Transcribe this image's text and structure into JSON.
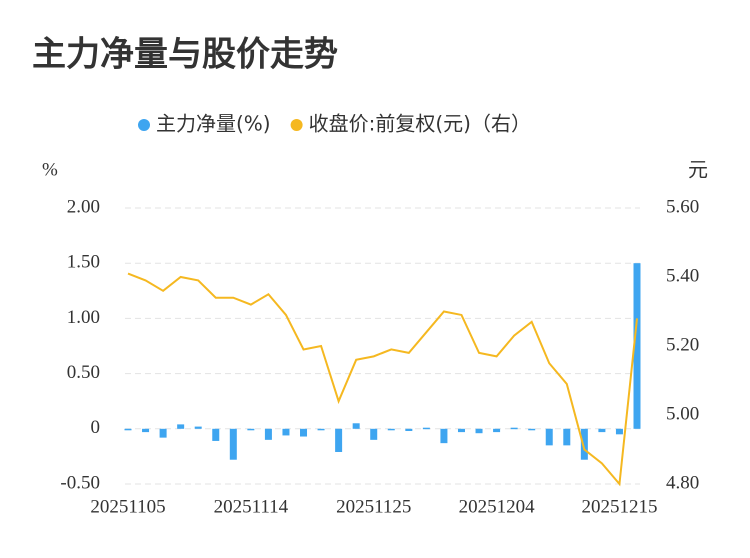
{
  "chart_data": {
    "type": "bar_line",
    "title": "主力净量与股价走势",
    "categories": [
      "20251105",
      null,
      null,
      null,
      null,
      null,
      null,
      "20251114",
      null,
      null,
      null,
      null,
      null,
      null,
      "20251125",
      null,
      null,
      null,
      null,
      null,
      null,
      "20251204",
      null,
      null,
      null,
      null,
      null,
      null,
      "20251215",
      null
    ],
    "series": [
      {
        "name": "主力净量(%)",
        "type": "bar",
        "color": "#3ea5f0",
        "values": [
          -0.01,
          -0.03,
          -0.08,
          0.04,
          0.02,
          -0.11,
          -0.28,
          -0.01,
          -0.1,
          -0.06,
          -0.07,
          -0.01,
          -0.21,
          0.05,
          -0.1,
          0,
          -0.02,
          0.01,
          -0.13,
          -0.03,
          -0.04,
          -0.03,
          0.01,
          0,
          -0.15,
          -0.15,
          -0.28,
          -0.03,
          -0.05,
          1.5
        ]
      },
      {
        "name": "收盘价:前复权(元)（右）",
        "type": "line",
        "axis": "y2",
        "color": "#f5b820",
        "values": [
          5.41,
          5.39,
          5.36,
          5.4,
          5.39,
          5.34,
          5.34,
          5.32,
          5.35,
          5.29,
          5.19,
          5.2,
          5.04,
          5.16,
          5.17,
          5.19,
          5.18,
          5.24,
          5.3,
          5.29,
          5.18,
          5.17,
          5.23,
          5.27,
          5.15,
          5.09,
          4.9,
          4.86,
          4.8,
          5.28
        ]
      }
    ],
    "y_label": "%",
    "y2_label": "元",
    "ylim": [
      -0.5,
      2.0
    ],
    "yticks": [
      {
        "value": -0.5,
        "label": "-0.50"
      },
      0,
      {
        "value": 0.5,
        "label": "0.50"
      },
      {
        "value": 1.0,
        "label": "1.00"
      },
      {
        "value": 1.5,
        "label": "1.50"
      },
      {
        "value": 2.0,
        "label": "2.00"
      }
    ],
    "y2lim": [
      4.8,
      5.6
    ],
    "y2ticks": [
      {
        "value": 4.8,
        "label": "4.80"
      },
      {
        "value": 5.0,
        "label": "5.00"
      },
      {
        "value": 5.2,
        "label": "5.20"
      },
      {
        "value": 5.4,
        "label": "5.40"
      },
      {
        "value": 5.6,
        "label": "5.60"
      }
    ],
    "grid": true
  }
}
